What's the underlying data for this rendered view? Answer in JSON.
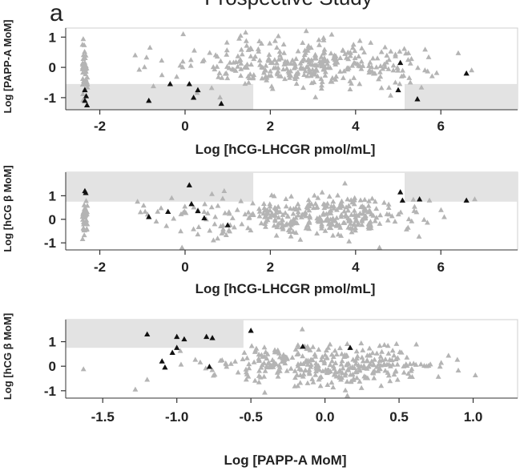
{
  "figure": {
    "panel_letter": "a",
    "title_fragment": "Prospective Study"
  },
  "chart_data": [
    {
      "type": "scatter",
      "xlabel": "Log [hCG-LHCGR pmol/mL]",
      "ylabel": "Log [PAPP-A MoM]",
      "xlim": [
        -2.8,
        7.8
      ],
      "ylim": [
        -1.4,
        1.3
      ],
      "xticks": [
        "-2",
        "0",
        "2",
        "4",
        "6"
      ],
      "xtick_values": [
        -2,
        0,
        2,
        4,
        6
      ],
      "yticks": [
        "1",
        "0",
        "-1"
      ],
      "ytick_values": [
        1,
        0,
        -1
      ],
      "shaded_regions": [
        {
          "x": [
            -2.8,
            1.6
          ],
          "y": [
            -1.4,
            -0.55
          ]
        },
        {
          "x": [
            5.15,
            7.8
          ],
          "y": [
            -1.4,
            -0.55
          ]
        }
      ],
      "colors": {
        "series": "#b4b4b4",
        "highlight": "#111111",
        "shade": "#e3e3e3"
      },
      "series": [
        {
          "points": []
        },
        {
          "points": [
            [
              -2.35,
              -0.75
            ],
            [
              -2.32,
              -0.95
            ],
            [
              -2.35,
              -1.1
            ],
            [
              -2.3,
              -1.25
            ],
            [
              -0.85,
              -1.1
            ],
            [
              -0.35,
              -0.55
            ],
            [
              0.1,
              -0.55
            ],
            [
              0.3,
              -0.75
            ],
            [
              0.2,
              -1.0
            ],
            [
              0.85,
              -1.2
            ],
            [
              5.05,
              0.15
            ],
            [
              5.0,
              -0.75
            ],
            [
              5.45,
              -1.05
            ],
            [
              6.6,
              -0.2
            ]
          ]
        }
      ]
    },
    {
      "type": "scatter",
      "xlabel": "Log [hCG-LHCGR pmol/mL]",
      "ylabel": "Log [hCG β MoM]",
      "xlim": [
        -2.8,
        7.8
      ],
      "ylim": [
        -1.3,
        2.0
      ],
      "xticks": [
        "-2",
        "0",
        "2",
        "4",
        "6"
      ],
      "xtick_values": [
        -2,
        0,
        2,
        4,
        6
      ],
      "yticks": [
        "1",
        "0",
        "-1"
      ],
      "ytick_values": [
        1,
        0,
        -1
      ],
      "shaded_regions": [
        {
          "x": [
            -2.8,
            1.6
          ],
          "y": [
            0.75,
            2.0
          ]
        },
        {
          "x": [
            5.15,
            7.8
          ],
          "y": [
            0.75,
            2.0
          ]
        }
      ],
      "colors": {
        "series": "#b4b4b4",
        "highlight": "#111111",
        "shade": "#e3e3e3"
      },
      "series": [
        {
          "points": []
        },
        {
          "points": [
            [
              -2.35,
              1.2
            ],
            [
              -2.33,
              1.12
            ],
            [
              -0.85,
              0.1
            ],
            [
              -0.4,
              0.32
            ],
            [
              0.1,
              1.45
            ],
            [
              0.15,
              0.65
            ],
            [
              0.3,
              0.35
            ],
            [
              0.45,
              0.05
            ],
            [
              1.0,
              -0.25
            ],
            [
              5.05,
              1.15
            ],
            [
              5.1,
              0.8
            ],
            [
              5.5,
              0.85
            ],
            [
              6.6,
              0.8
            ]
          ]
        }
      ]
    },
    {
      "type": "scatter",
      "xlabel": "Log [PAPP-A MoM]",
      "ylabel": "Log [hCG β MoM]",
      "xlim": [
        -1.75,
        1.3
      ],
      "ylim": [
        -1.3,
        1.9
      ],
      "xticks": [
        "-1.5",
        "-1.0",
        "-0.5",
        "0.0",
        "0.5",
        "1.0"
      ],
      "xtick_values": [
        -1.5,
        -1.0,
        -0.5,
        0.0,
        0.5,
        1.0
      ],
      "yticks": [
        "1",
        "0",
        "-1"
      ],
      "ytick_values": [
        1,
        0,
        -1
      ],
      "shaded_regions": [
        {
          "x": [
            -1.75,
            -0.55
          ],
          "y": [
            0.75,
            1.9
          ]
        }
      ],
      "colors": {
        "series": "#b4b4b4",
        "highlight": "#111111",
        "shade": "#e3e3e3"
      },
      "series": [
        {
          "points": []
        },
        {
          "points": [
            [
              -1.2,
              1.3
            ],
            [
              -1.0,
              1.2
            ],
            [
              -0.95,
              1.1
            ],
            [
              -0.8,
              1.2
            ],
            [
              -0.76,
              1.15
            ],
            [
              -0.5,
              1.45
            ],
            [
              -1.1,
              0.2
            ],
            [
              -1.08,
              -0.05
            ],
            [
              -1.03,
              0.55
            ],
            [
              -1.0,
              0.75
            ],
            [
              -0.78,
              -0.02
            ],
            [
              -0.15,
              0.8
            ],
            [
              0.17,
              0.75
            ]
          ]
        }
      ]
    }
  ]
}
